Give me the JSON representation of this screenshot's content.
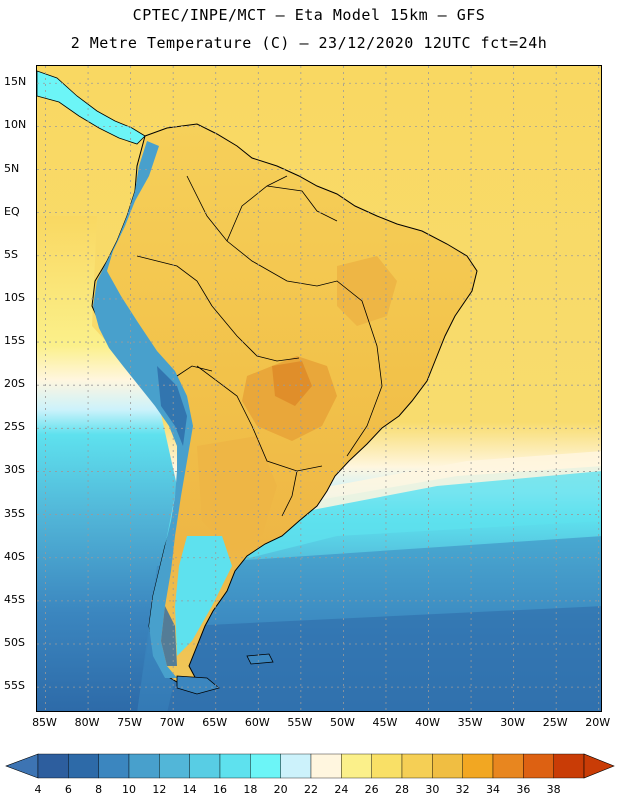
{
  "header": {
    "line1": "CPTEC/INPE/MCT –  Eta Model 15km – GFS",
    "line2": "2 Metre Temperature (C) – 23/12/2020 12UTC fct=24h"
  },
  "map": {
    "lon_range": [
      -86,
      -19.5
    ],
    "lat_range": [
      -58,
      17
    ],
    "lat_ticks": [
      "15N",
      "10N",
      "5N",
      "EQ",
      "5S",
      "10S",
      "15S",
      "20S",
      "25S",
      "30S",
      "35S",
      "40S",
      "45S",
      "50S",
      "55S"
    ],
    "lat_values": [
      15,
      10,
      5,
      0,
      -5,
      -10,
      -15,
      -20,
      -25,
      -30,
      -35,
      -40,
      -45,
      -50,
      -55
    ],
    "lon_ticks": [
      "85W",
      "80W",
      "75W",
      "70W",
      "65W",
      "60W",
      "55W",
      "50W",
      "45W",
      "40W",
      "35W",
      "30W",
      "25W",
      "20W"
    ],
    "lon_values": [
      -85,
      -80,
      -75,
      -70,
      -65,
      -60,
      -55,
      -50,
      -45,
      -40,
      -35,
      -30,
      -25,
      -20
    ],
    "colors": {
      "ocean_warm": "#f9d862",
      "land_warm": "#f2c24a",
      "land_hot": "#e9a73a",
      "hotspot": "#e08e2a",
      "andes_cold": "#3ea8c8",
      "andes_colder": "#2b7ab3",
      "ocean_mid": "#5ee1ee",
      "ocean_cool": "#42b6d6",
      "ocean_cold": "#2d6aa8",
      "coast_line": "#000000",
      "grid_line": "#9a9a9a"
    }
  },
  "colorbar": {
    "labels": [
      "4",
      "6",
      "8",
      "10",
      "12",
      "14",
      "16",
      "18",
      "20",
      "22",
      "24",
      "26",
      "28",
      "30",
      "32",
      "34",
      "36",
      "38"
    ],
    "colors": [
      "#2d5e9e",
      "#2d6aa8",
      "#3b86bf",
      "#48a0cc",
      "#52b6d8",
      "#58cde4",
      "#5ee1ee",
      "#6cf5f7",
      "#ccf2fb",
      "#fff6df",
      "#fbf08a",
      "#f9e066",
      "#f5cf55",
      "#f0be42",
      "#f2a722",
      "#e8861f",
      "#dd6112",
      "#c93c06"
    ],
    "left_arrow_color": "#3d74b3",
    "right_arrow_color": "#c93c06"
  }
}
